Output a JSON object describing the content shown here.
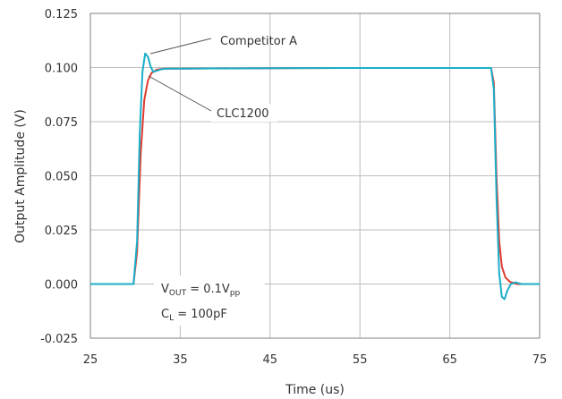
{
  "chart_data": {
    "type": "line",
    "xlabel": "Time (us)",
    "ylabel": "Output Amplitude (V)",
    "xlim": [
      25,
      75
    ],
    "ylim": [
      -0.025,
      0.125
    ],
    "x_ticks": [
      "25",
      "35",
      "45",
      "55",
      "65",
      "75"
    ],
    "y_ticks": [
      "-0.025",
      "0.000",
      "0.025",
      "0.050",
      "0.075",
      "0.100",
      "0.125"
    ],
    "grid": true,
    "series": [
      {
        "name": "CLC1200",
        "color": "#e03a2f",
        "x": [
          25,
          29.8,
          30.2,
          30.6,
          31.0,
          31.4,
          31.8,
          32.4,
          33.2,
          35,
          45,
          55,
          65,
          69.6,
          69.9,
          70.2,
          70.5,
          70.8,
          71.2,
          71.7,
          72.5,
          75
        ],
        "y": [
          0.0,
          0.0,
          0.015,
          0.06,
          0.085,
          0.094,
          0.0975,
          0.099,
          0.0995,
          0.0995,
          0.0997,
          0.0998,
          0.0998,
          0.0998,
          0.093,
          0.05,
          0.02,
          0.008,
          0.003,
          0.001,
          0.0,
          0.0
        ]
      },
      {
        "name": "Competitor A",
        "color": "#1aaec9",
        "x": [
          25,
          29.8,
          30.2,
          30.5,
          30.8,
          31.1,
          31.4,
          31.7,
          32.0,
          32.4,
          32.9,
          33.5,
          35,
          45,
          55,
          65,
          69.6,
          69.9,
          70.2,
          70.5,
          70.8,
          71.1,
          71.4,
          71.8,
          72.3,
          73.0,
          75
        ],
        "y": [
          0.0,
          0.0,
          0.02,
          0.07,
          0.098,
          0.1065,
          0.105,
          0.1005,
          0.098,
          0.0985,
          0.0992,
          0.0995,
          0.0995,
          0.0997,
          0.0998,
          0.0998,
          0.0998,
          0.09,
          0.04,
          0.005,
          -0.006,
          -0.007,
          -0.003,
          0.0,
          0.0008,
          0.0,
          0.0
        ]
      }
    ],
    "annotations": [
      {
        "label": "Competitor A"
      },
      {
        "label": "CLC1200"
      }
    ],
    "conditions": {
      "vout": {
        "main": "V",
        "sub": "OUT",
        "rest": " = 0.1V",
        "tail_sub": "pp"
      },
      "cl": {
        "main": "C",
        "sub": "L",
        "rest": " = 100pF"
      }
    }
  }
}
